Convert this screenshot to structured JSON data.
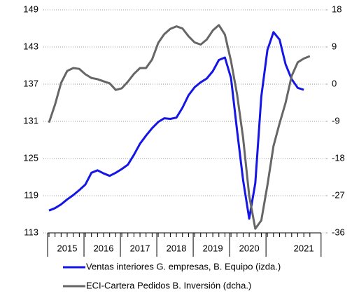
{
  "chart_data": {
    "type": "line",
    "categories": [
      null,
      null,
      null,
      "2015",
      null,
      null,
      null,
      null,
      null,
      "2016",
      null,
      null,
      null,
      null,
      null,
      "2017",
      null,
      null,
      null,
      null,
      null,
      "2018",
      null,
      null,
      null,
      null,
      null,
      "2019",
      null,
      null,
      null,
      null,
      null,
      "2020",
      null,
      null,
      null,
      null,
      null,
      null,
      null,
      null,
      "2021",
      null
    ],
    "series": [
      {
        "name": "Ventas interiores G. empresas, B. Equipo (izda.)",
        "color": "#1515e6",
        "axis": "y",
        "values": [
          116.6,
          117.0,
          117.6,
          118.4,
          119.1,
          119.9,
          120.8,
          122.7,
          123.1,
          122.6,
          122.2,
          122.7,
          123.3,
          124.0,
          125.6,
          127.4,
          128.7,
          129.9,
          130.9,
          131.5,
          131.4,
          131.6,
          133.2,
          135.2,
          136.5,
          137.3,
          137.9,
          139.1,
          140.9,
          141.3,
          138.0,
          129.5,
          121.5,
          115.3,
          121.0,
          135.0,
          142.5,
          145.4,
          144.2,
          140.2,
          137.8,
          136.4,
          136.1,
          null
        ]
      },
      {
        "name": "ECI-Cartera Pedidos B. Inversión (dcha.)",
        "color": "#666666",
        "axis": "y2",
        "values": [
          -9.3,
          -4.9,
          0.3,
          3.2,
          3.9,
          3.7,
          2.4,
          1.5,
          1.2,
          0.7,
          0.2,
          -1.4,
          -1.0,
          0.6,
          2.5,
          3.9,
          3.9,
          6.0,
          10.0,
          12.1,
          13.4,
          14.0,
          13.5,
          11.6,
          10.1,
          9.6,
          10.8,
          13.0,
          14.3,
          12.0,
          5.6,
          -2.5,
          -13.0,
          -27.0,
          -35.0,
          -33.0,
          -24.5,
          -15.0,
          -9.5,
          -4.5,
          2.0,
          5.3,
          6.2,
          6.8
        ]
      }
    ],
    "ylim": [
      113,
      149
    ],
    "yticks": [
      113,
      119,
      125,
      131,
      137,
      143,
      149
    ],
    "y2lim": [
      -36,
      18
    ],
    "y2ticks": [
      -36,
      -27,
      -18,
      -9,
      0,
      9,
      18
    ],
    "grid": true,
    "legend": "bottom"
  }
}
